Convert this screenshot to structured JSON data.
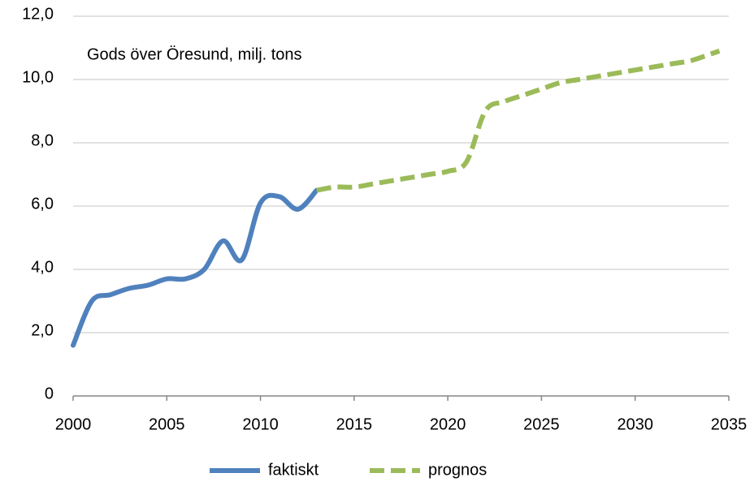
{
  "chart_data": {
    "type": "line",
    "annotation": "Gods över Öresund, milj. tons",
    "xlim": [
      2000,
      2035
    ],
    "xticks": [
      2000,
      2005,
      2010,
      2015,
      2020,
      2025,
      2030,
      2035
    ],
    "ylim": [
      0,
      12
    ],
    "yticks": [
      0,
      {
        "value": 2,
        "label": "2,0"
      },
      {
        "value": 4,
        "label": "4,0"
      },
      {
        "value": 6,
        "label": "6,0"
      },
      {
        "value": 8,
        "label": "8,0"
      },
      {
        "value": 10,
        "label": "10,0"
      },
      {
        "value": 12,
        "label": "12,0"
      }
    ],
    "grid": true,
    "legend": "bottom",
    "series": [
      {
        "name": "faktiskt",
        "color": "#4f81bd",
        "dashed": false,
        "x": [
          2000,
          2001,
          2002,
          2003,
          2004,
          2005,
          2006,
          2007,
          2008,
          2009,
          2010,
          2011,
          2012,
          2013
        ],
        "values": [
          1.6,
          3.0,
          3.2,
          3.4,
          3.5,
          3.7,
          3.7,
          4.0,
          4.9,
          4.3,
          6.1,
          6.3,
          5.9,
          6.5
        ]
      },
      {
        "name": "prognos",
        "color": "#9bbb59",
        "dashed": true,
        "x": [
          2013,
          2014,
          2015,
          2016,
          2017,
          2018,
          2019,
          2020,
          2021,
          2022,
          2023,
          2024,
          2025,
          2026,
          2027,
          2028,
          2029,
          2030,
          2031,
          2032,
          2033,
          2034,
          2034.5
        ],
        "values": [
          6.5,
          6.6,
          6.6,
          6.7,
          6.8,
          6.9,
          7.0,
          7.1,
          7.4,
          9.0,
          9.3,
          9.5,
          9.7,
          9.9,
          10.0,
          10.1,
          10.2,
          10.3,
          10.4,
          10.5,
          10.6,
          10.8,
          10.9
        ]
      }
    ]
  }
}
